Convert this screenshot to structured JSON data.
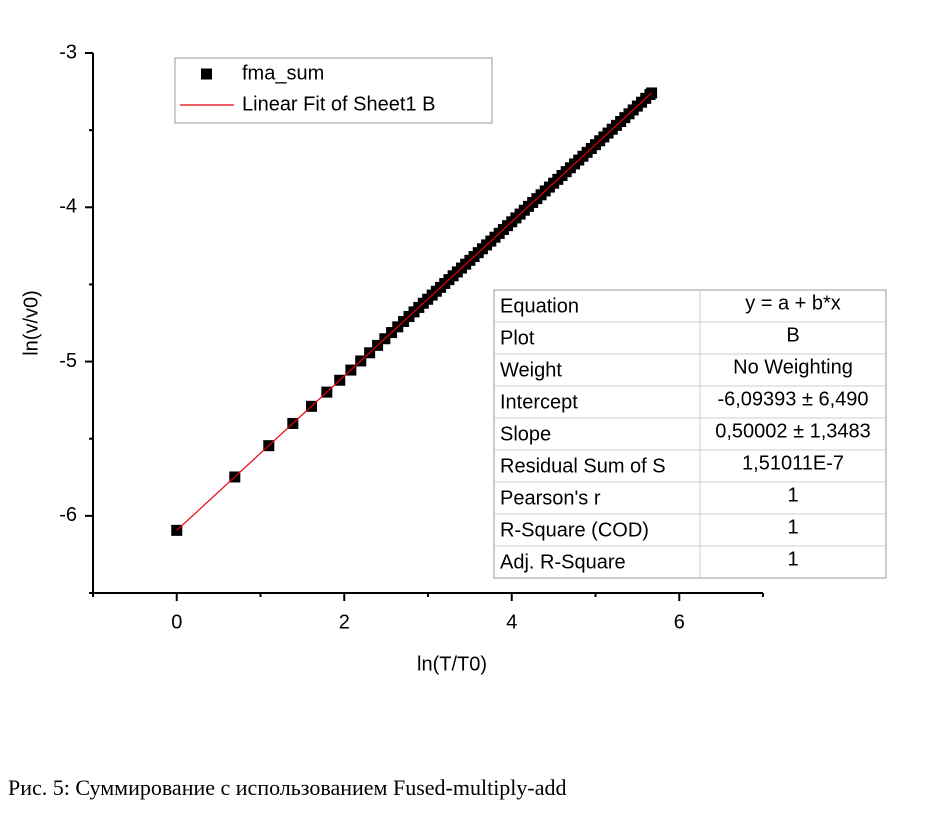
{
  "chart_data": {
    "type": "scatter",
    "x_label": "ln(T/T0)",
    "y_label": "ln(v/v0)",
    "xlim": [
      -1,
      7
    ],
    "ylim": [
      -6.5,
      -3
    ],
    "xticks": [
      0,
      2,
      4,
      6
    ],
    "yticks": [
      -6,
      -5,
      -4,
      -3
    ],
    "x_minor_ticks": [
      -1,
      1,
      3,
      5,
      7
    ],
    "y_minor_ticks": [
      -6.5,
      -5.5,
      -4.5,
      -3.5
    ],
    "series": [
      {
        "name": "fma_sum",
        "color": "#000000",
        "marker": "square",
        "x": [
          0,
          0.693,
          1.099,
          1.386,
          1.609,
          1.792,
          1.946,
          2.079,
          2.197,
          2.303,
          2.398,
          2.485,
          2.565,
          2.639,
          2.708,
          2.773,
          2.833,
          2.89,
          2.944,
          2.996,
          3.05,
          3.1,
          3.15,
          3.2,
          3.25,
          3.3,
          3.35,
          3.4,
          3.45,
          3.5,
          3.55,
          3.6,
          3.65,
          3.7,
          3.75,
          3.8,
          3.85,
          3.9,
          3.95,
          4.0,
          4.05,
          4.1,
          4.15,
          4.2,
          4.25,
          4.3,
          4.35,
          4.4,
          4.45,
          4.5,
          4.55,
          4.6,
          4.65,
          4.7,
          4.75,
          4.8,
          4.85,
          4.9,
          4.95,
          5.0,
          5.05,
          5.1,
          5.15,
          5.2,
          5.25,
          5.3,
          5.35,
          5.4,
          5.45,
          5.5,
          5.55,
          5.6,
          5.65,
          5.67
        ],
        "values": [
          -6.094,
          -5.748,
          -5.545,
          -5.401,
          -5.29,
          -5.198,
          -5.121,
          -5.055,
          -4.996,
          -4.943,
          -4.895,
          -4.852,
          -4.812,
          -4.775,
          -4.74,
          -4.708,
          -4.678,
          -4.649,
          -4.622,
          -4.596,
          -4.569,
          -4.544,
          -4.519,
          -4.494,
          -4.469,
          -4.444,
          -4.419,
          -4.394,
          -4.369,
          -4.344,
          -4.319,
          -4.294,
          -4.269,
          -4.244,
          -4.219,
          -4.194,
          -4.169,
          -4.144,
          -4.119,
          -4.094,
          -4.069,
          -4.044,
          -4.019,
          -3.994,
          -3.969,
          -3.944,
          -3.919,
          -3.894,
          -3.869,
          -3.844,
          -3.819,
          -3.794,
          -3.769,
          -3.744,
          -3.719,
          -3.694,
          -3.669,
          -3.644,
          -3.619,
          -3.594,
          -3.569,
          -3.544,
          -3.519,
          -3.494,
          -3.469,
          -3.444,
          -3.419,
          -3.394,
          -3.369,
          -3.344,
          -3.319,
          -3.294,
          -3.269,
          -3.259
        ]
      },
      {
        "name": "Linear Fit of Sheet1 B",
        "color": "#e8000b",
        "marker": "line",
        "x": [
          0,
          5.67
        ],
        "values": [
          -6.094,
          -3.259
        ]
      }
    ],
    "fit_table": {
      "rows": [
        [
          "Equation",
          "y = a + b*x"
        ],
        [
          "Plot",
          "B"
        ],
        [
          "Weight",
          "No Weighting"
        ],
        [
          "Intercept",
          "-6,09393 ± 6,490"
        ],
        [
          "Slope",
          "0,50002 ± 1,3483"
        ],
        [
          "Residual Sum of S",
          "1,51011E-7"
        ],
        [
          "Pearson's r",
          "1"
        ],
        [
          "R-Square (COD)",
          "1"
        ],
        [
          "Adj. R-Square",
          "1"
        ]
      ]
    },
    "caption": "Рис. 5: Суммирование с использованием Fused-multiply-add"
  }
}
